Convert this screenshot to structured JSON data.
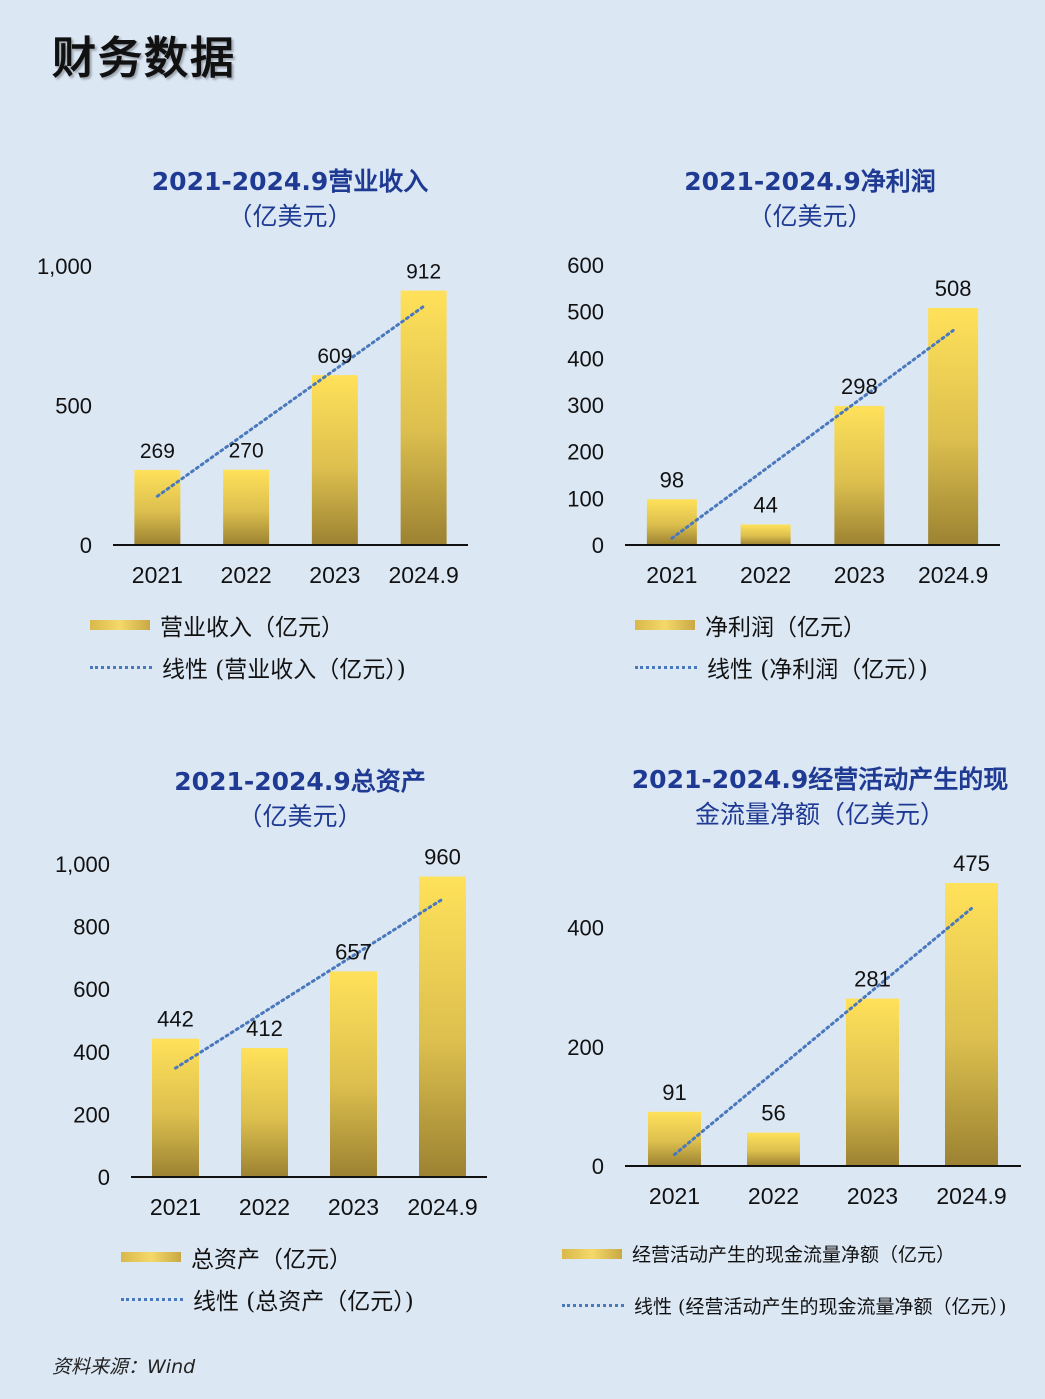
{
  "page_title": "财务数据",
  "source": "资料来源：Wind",
  "colors": {
    "bar_top": "#ffe15a",
    "bar_bottom": "#9c8232",
    "trend": "#4a78bd",
    "title": "#1f3a93"
  },
  "chart_data": [
    {
      "type": "bar",
      "title": "2021-2024.9营业收入",
      "subtitle": "（亿美元）",
      "categories": [
        "2021",
        "2022",
        "2023",
        "2024.9"
      ],
      "series": [
        {
          "name": "营业收入（亿元）",
          "values": [
            269,
            270,
            609,
            912
          ]
        }
      ],
      "trendline": {
        "name": "线性 (营业收入（亿元）)",
        "type": "linear"
      },
      "data_labels": [
        "269",
        "270",
        "609",
        "912"
      ],
      "ylim": [
        0,
        1000
      ],
      "yticks": [
        0,
        500,
        1000
      ],
      "ytick_labels": [
        "0",
        "500",
        "1,000"
      ],
      "legend": {
        "bar_label": "营业收入（亿元）",
        "line_label": "线性 (营业收入（亿元）)"
      }
    },
    {
      "type": "bar",
      "title": "2021-2024.9净利润",
      "subtitle": "（亿美元）",
      "categories": [
        "2021",
        "2022",
        "2023",
        "2024.9"
      ],
      "series": [
        {
          "name": "净利润（亿元）",
          "values": [
            98,
            44,
            298,
            508
          ]
        }
      ],
      "trendline": {
        "name": "线性 (净利润（亿元）)",
        "type": "linear"
      },
      "data_labels": [
        "98",
        "44",
        "298",
        "508"
      ],
      "ylim": [
        0,
        600
      ],
      "yticks": [
        0,
        100,
        200,
        300,
        400,
        500,
        600
      ],
      "ytick_labels": [
        "0",
        "100",
        "200",
        "300",
        "400",
        "500",
        "600"
      ],
      "legend": {
        "bar_label": "净利润（亿元）",
        "line_label": "线性 (净利润（亿元）)"
      }
    },
    {
      "type": "bar",
      "title": "2021-2024.9总资产",
      "subtitle": "（亿美元）",
      "categories": [
        "2021",
        "2022",
        "2023",
        "2024.9"
      ],
      "series": [
        {
          "name": "总资产（亿元）",
          "values": [
            442,
            412,
            657,
            960
          ]
        }
      ],
      "trendline": {
        "name": "线性 (总资产（亿元）)",
        "type": "linear"
      },
      "data_labels": [
        "442",
        "412",
        "657",
        "960"
      ],
      "ylim": [
        0,
        1000
      ],
      "yticks": [
        0,
        200,
        400,
        600,
        800,
        1000
      ],
      "ytick_labels": [
        "0",
        "200",
        "400",
        "600",
        "800",
        "1,000"
      ],
      "legend": {
        "bar_label": "总资产（亿元）",
        "line_label": "线性 (总资产（亿元）)"
      }
    },
    {
      "type": "bar",
      "title": "2021-2024.9经营活动产生的现",
      "subtitle": "金流量净额（亿美元）",
      "categories": [
        "2021",
        "2022",
        "2023",
        "2024.9"
      ],
      "series": [
        {
          "name": "经营活动产生的现金流量净额（亿元）",
          "values": [
            91,
            56,
            281,
            475
          ]
        }
      ],
      "trendline": {
        "name": "线性 (经营活动产生的现金流量净额（亿元）)",
        "type": "linear"
      },
      "data_labels": [
        "91",
        "56",
        "281",
        "475"
      ],
      "ylim": [
        0,
        480
      ],
      "yticks": [
        0,
        200,
        400
      ],
      "ytick_labels": [
        "0",
        "200",
        "400"
      ],
      "legend": {
        "bar_label": "经营活动产生的现金流量净额（亿元）",
        "line_label": "线性 (经营活动产生的现金流量净额（亿元）)"
      }
    }
  ]
}
